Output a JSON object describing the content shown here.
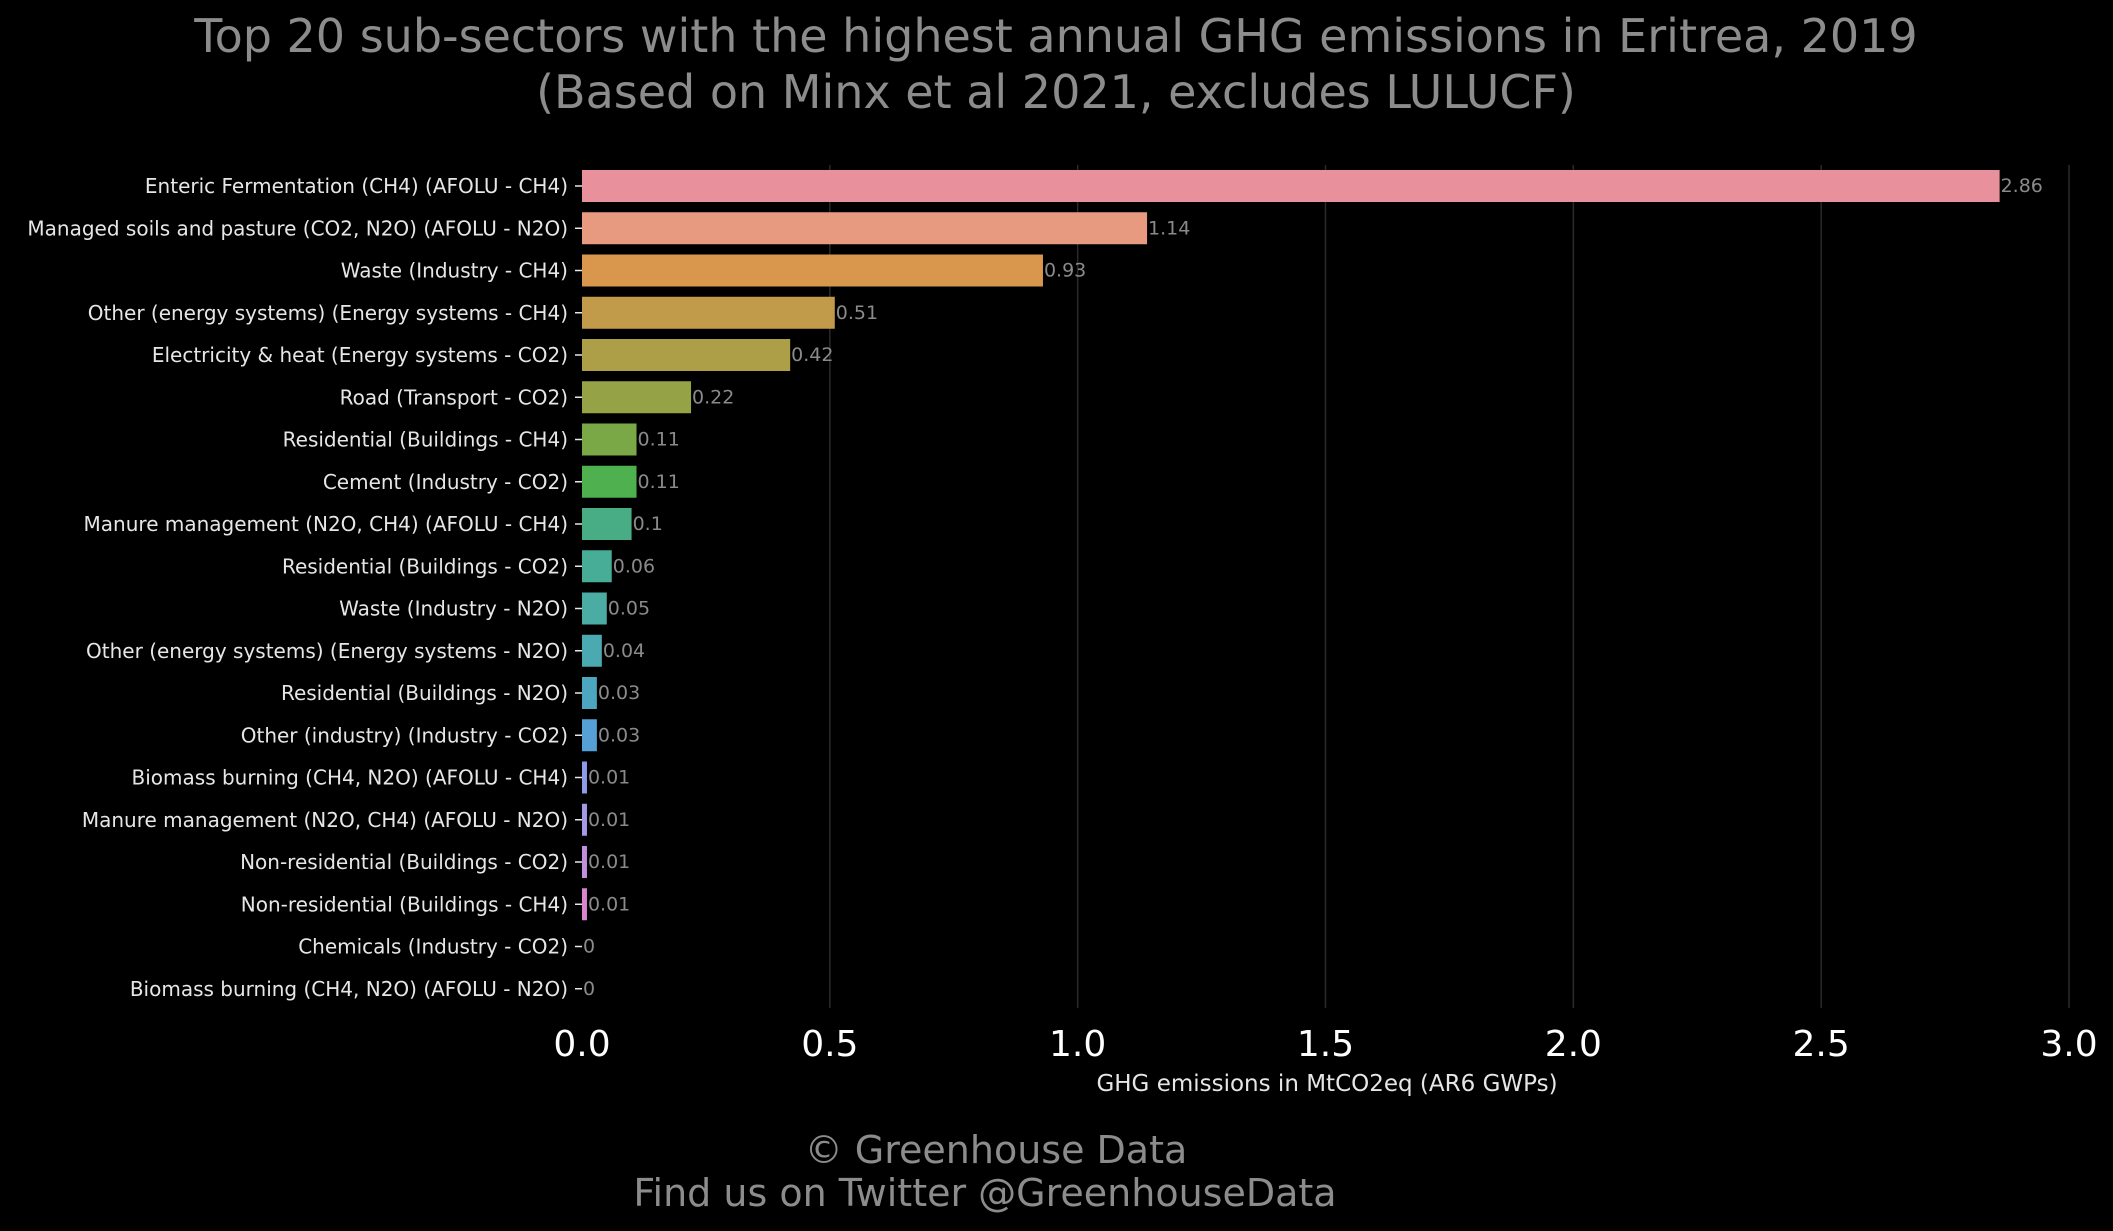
{
  "chart_data": {
    "type": "bar",
    "orientation": "horizontal",
    "title": "Top 20 sub-sectors with the highest annual GHG emissions in Eritrea, 2019",
    "subtitle": "(Based on Minx et al 2021, excludes LULUCF)",
    "xlabel": "GHG emissions in MtCO2eq (AR6 GWPs)",
    "ylabel": "",
    "xlim": [
      0,
      3.0
    ],
    "xticks": [
      "0.0",
      "0.5",
      "1.0",
      "1.5",
      "2.0",
      "2.5",
      "3.0"
    ],
    "grid": "vertical",
    "categories": [
      "Enteric Fermentation (CH4) (AFOLU - CH4)",
      "Managed soils and pasture (CO2, N2O) (AFOLU - N2O)",
      "Waste (Industry - CH4)",
      "Other (energy systems) (Energy systems - CH4)",
      "Electricity & heat (Energy systems - CO2)",
      "Road (Transport - CO2)",
      "Residential (Buildings - CH4)",
      "Cement (Industry - CO2)",
      "Manure management (N2O, CH4) (AFOLU - CH4)",
      "Residential (Buildings - CO2)",
      "Waste (Industry - N2O)",
      "Other (energy systems) (Energy systems - N2O)",
      "Residential (Buildings - N2O)",
      "Other (industry) (Industry - CO2)",
      "Biomass burning (CH4, N2O) (AFOLU - CH4)",
      "Manure management (N2O, CH4) (AFOLU - N2O)",
      "Non-residential (Buildings - CO2)",
      "Non-residential (Buildings - CH4)",
      "Chemicals (Industry - CO2)",
      "Biomass burning (CH4, N2O) (AFOLU - N2O)"
    ],
    "values": [
      2.86,
      1.14,
      0.93,
      0.51,
      0.42,
      0.22,
      0.11,
      0.11,
      0.1,
      0.06,
      0.05,
      0.04,
      0.03,
      0.03,
      0.01,
      0.01,
      0.01,
      0.01,
      0,
      0
    ],
    "value_labels": [
      "2.86",
      "1.14",
      "0.93",
      "0.51",
      "0.42",
      "0.22",
      "0.11",
      "0.11",
      "0.1",
      "0.06",
      "0.05",
      "0.04",
      "0.03",
      "0.03",
      "0.01",
      "0.01",
      "0.01",
      "0.01",
      "0",
      "0"
    ],
    "colors": [
      "#e8909c",
      "#e89a80",
      "#d9964d",
      "#c29b4a",
      "#ad9f48",
      "#95a346",
      "#7aa846",
      "#4eb04e",
      "#48ad85",
      "#48ad96",
      "#4aaca3",
      "#4ba9b1",
      "#4ca6c0",
      "#55a1d6",
      "#8e9ce8",
      "#a69ae8",
      "#c191e0",
      "#d986d0",
      "#e08bc4",
      "#e692b2"
    ]
  },
  "footer": {
    "copyright": "© Greenhouse Data",
    "twitter": "Find us on Twitter @GreenhouseData"
  }
}
